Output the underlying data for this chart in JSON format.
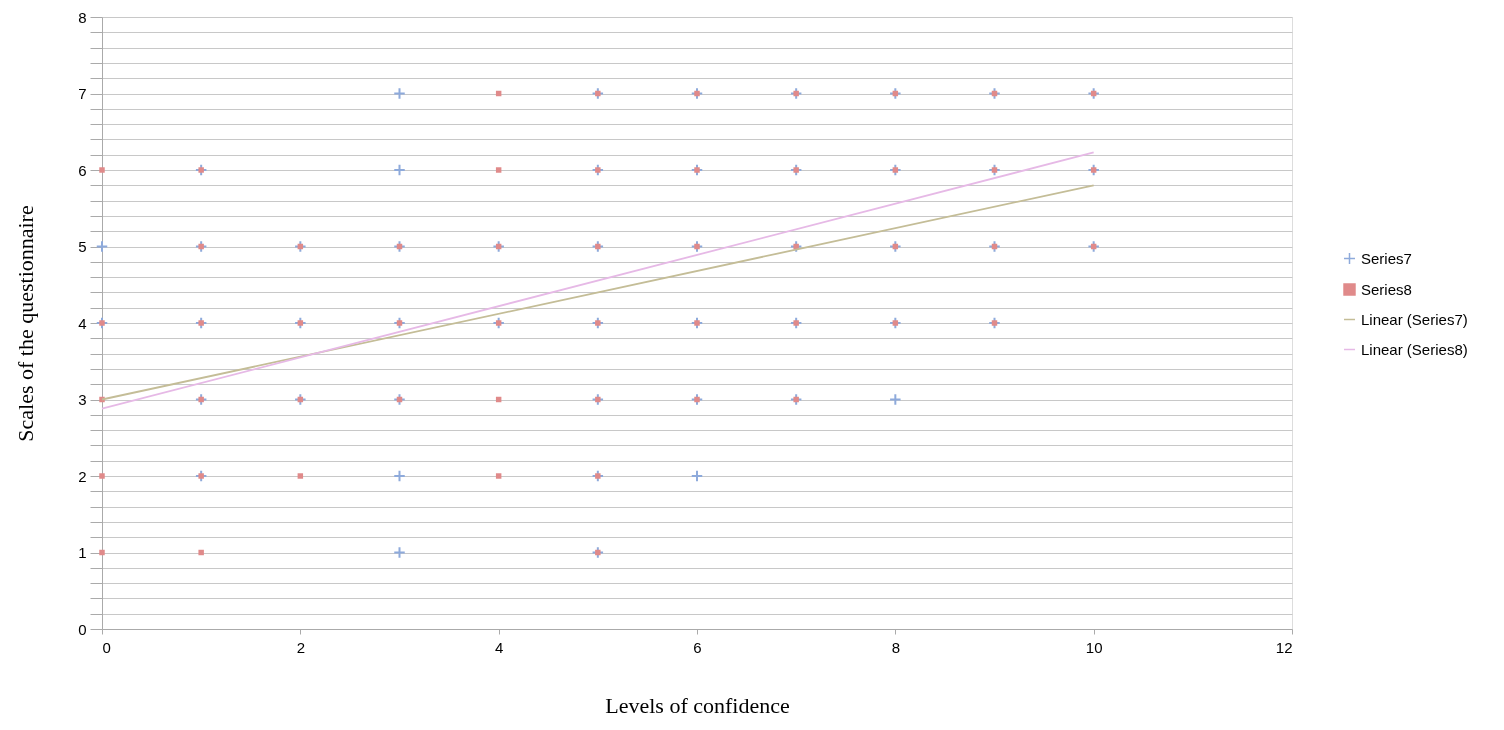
{
  "chart_data": {
    "type": "scatter",
    "xlabel": "Levels of confidence",
    "ylabel": "Scales of the questionnaire",
    "xlim": [
      0,
      12
    ],
    "xticks": [
      0,
      2,
      4,
      6,
      8,
      10,
      12
    ],
    "ylim": [
      0,
      8
    ],
    "yticks": [
      0,
      {
        "value": 0.2,
        "label": null
      },
      {
        "value": 0.4,
        "label": null
      },
      {
        "value": 0.6,
        "label": null
      },
      {
        "value": 0.8,
        "label": null
      },
      1,
      {
        "value": 1.2,
        "label": null
      },
      {
        "value": 1.4,
        "label": null
      },
      {
        "value": 1.6,
        "label": null
      },
      {
        "value": 1.8,
        "label": null
      },
      2,
      {
        "value": 2.2,
        "label": null
      },
      {
        "value": 2.4,
        "label": null
      },
      {
        "value": 2.6,
        "label": null
      },
      {
        "value": 2.8,
        "label": null
      },
      3,
      {
        "value": 3.2,
        "label": null
      },
      {
        "value": 3.4,
        "label": null
      },
      {
        "value": 3.6,
        "label": null
      },
      {
        "value": 3.8,
        "label": null
      },
      4,
      {
        "value": 4.2,
        "label": null
      },
      {
        "value": 4.4,
        "label": null
      },
      {
        "value": 4.6,
        "label": null
      },
      {
        "value": 4.8,
        "label": null
      },
      5,
      {
        "value": 5.2,
        "label": null
      },
      {
        "value": 5.4,
        "label": null
      },
      {
        "value": 5.6,
        "label": null
      },
      {
        "value": 5.8,
        "label": null
      },
      6,
      {
        "value": 6.2,
        "label": null
      },
      {
        "value": 6.4,
        "label": null
      },
      {
        "value": 6.6,
        "label": null
      },
      {
        "value": 6.8,
        "label": null
      },
      7,
      {
        "value": 7.2,
        "label": null
      },
      {
        "value": 7.4,
        "label": null
      },
      {
        "value": 7.6,
        "label": null
      },
      {
        "value": 7.8,
        "label": null
      },
      8
    ],
    "grid": "y",
    "legend": "right",
    "series": [
      {
        "name": "Series7",
        "color": "#8eaadb",
        "marker": "cross",
        "x": [
          0,
          0,
          1,
          1,
          1,
          1,
          1,
          2,
          2,
          2,
          3,
          3,
          3,
          3,
          3,
          3,
          3,
          4,
          4,
          5,
          5,
          5,
          5,
          5,
          5,
          5,
          6,
          6,
          6,
          6,
          6,
          6,
          7,
          7,
          7,
          7,
          7,
          8,
          8,
          8,
          8,
          8,
          9,
          9,
          9,
          9,
          10,
          10,
          10
        ],
        "values": [
          5,
          4,
          6,
          5,
          4,
          3,
          2,
          5,
          4,
          3,
          7,
          6,
          5,
          4,
          3,
          2,
          1,
          5,
          4,
          7,
          6,
          5,
          4,
          3,
          2,
          1,
          7,
          6,
          5,
          4,
          3,
          2,
          7,
          6,
          5,
          4,
          3,
          7,
          6,
          5,
          4,
          3,
          7,
          6,
          5,
          4,
          7,
          6,
          5
        ]
      },
      {
        "name": "Series8",
        "color": "#e08a8a",
        "marker": "square",
        "x": [
          0,
          0,
          0,
          0,
          0,
          1,
          1,
          1,
          1,
          1,
          1,
          2,
          2,
          2,
          2,
          3,
          3,
          3,
          4,
          4,
          4,
          4,
          4,
          4,
          5,
          5,
          5,
          5,
          5,
          5,
          5,
          6,
          6,
          6,
          6,
          6,
          7,
          7,
          7,
          7,
          7,
          8,
          8,
          8,
          8,
          9,
          9,
          9,
          9,
          10,
          10,
          10
        ],
        "values": [
          6,
          4,
          3,
          2,
          1,
          6,
          5,
          4,
          3,
          2,
          1,
          5,
          4,
          3,
          2,
          5,
          4,
          3,
          7,
          6,
          5,
          4,
          3,
          2,
          7,
          6,
          5,
          4,
          3,
          2,
          1,
          7,
          6,
          5,
          4,
          3,
          7,
          6,
          5,
          4,
          3,
          7,
          6,
          5,
          4,
          7,
          6,
          5,
          4,
          7,
          6,
          5
        ]
      },
      {
        "name": "Linear (Series7)",
        "type": "line",
        "color": "#c4bd97",
        "marker": "none",
        "x": [
          0,
          10
        ],
        "values": [
          3.0,
          5.8
        ]
      },
      {
        "name": "Linear (Series8)",
        "type": "line",
        "color": "#e6b9e6",
        "marker": "none",
        "x": [
          0,
          10
        ],
        "values": [
          2.88,
          6.23
        ]
      }
    ]
  }
}
